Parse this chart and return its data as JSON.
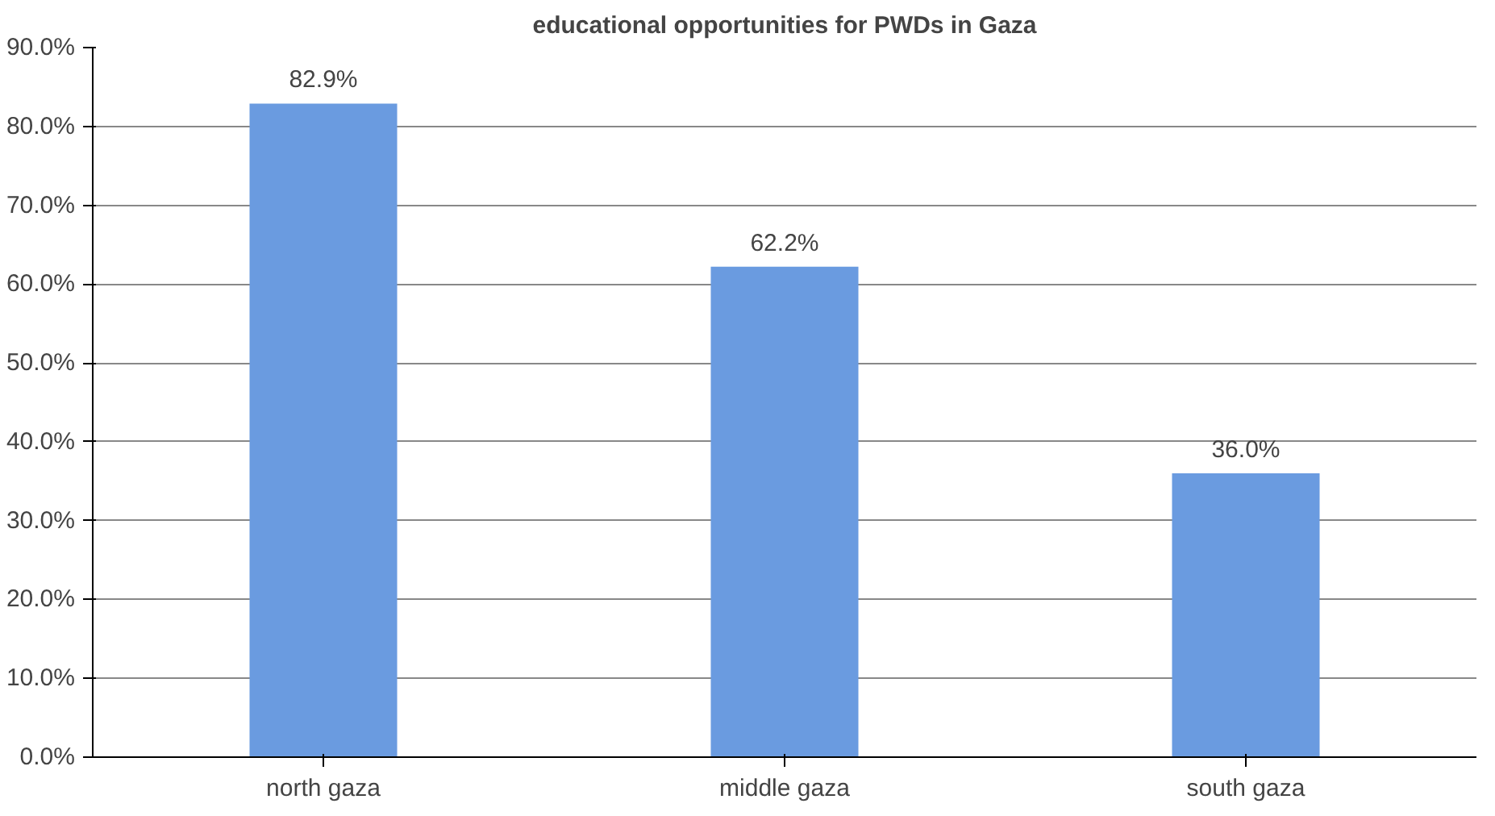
{
  "chart_data": {
    "type": "bar",
    "title": "educational opportunities for PWDs in Gaza",
    "categories": [
      "north gaza",
      "middle gaza",
      "south gaza"
    ],
    "values": [
      82.9,
      62.2,
      36.0
    ],
    "value_labels": [
      "82.9%",
      "62.2%",
      "36.0%"
    ],
    "color": "#6a9be0",
    "ylim": [
      0,
      90
    ],
    "yticks": [
      {
        "value": 0,
        "label": "0.0%"
      },
      {
        "value": 10,
        "label": "10.0%"
      },
      {
        "value": 20,
        "label": "20.0%"
      },
      {
        "value": 30,
        "label": "30.0%"
      },
      {
        "value": 40,
        "label": "40.0%"
      },
      {
        "value": 50,
        "label": "50.0%"
      },
      {
        "value": 60,
        "label": "60.0%"
      },
      {
        "value": 70,
        "label": "70.0%"
      },
      {
        "value": 80,
        "label": "80.0%"
      },
      {
        "value": 90,
        "label": "90.0%"
      }
    ],
    "grid": "y"
  }
}
